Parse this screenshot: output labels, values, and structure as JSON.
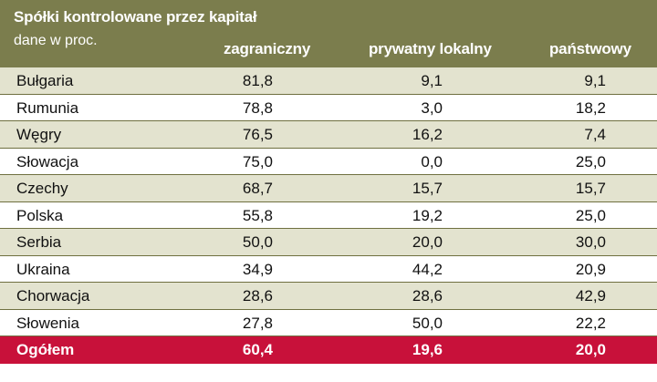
{
  "chart_data": {
    "type": "table",
    "title": "Spółki kontrolowane przez kapitał",
    "subtitle": "dane w proc.",
    "columns": [
      "zagraniczny",
      "prywatny lokalny",
      "państwowy"
    ],
    "rows": [
      {
        "country": "Bułgaria",
        "values": [
          "81,8",
          "9,1",
          "9,1"
        ]
      },
      {
        "country": "Rumunia",
        "values": [
          "78,8",
          "3,0",
          "18,2"
        ]
      },
      {
        "country": "Węgry",
        "values": [
          "76,5",
          "16,2",
          "7,4"
        ]
      },
      {
        "country": "Słowacja",
        "values": [
          "75,0",
          "0,0",
          "25,0"
        ]
      },
      {
        "country": "Czechy",
        "values": [
          "68,7",
          "15,7",
          "15,7"
        ]
      },
      {
        "country": "Polska",
        "values": [
          "55,8",
          "19,2",
          "25,0"
        ]
      },
      {
        "country": "Serbia",
        "values": [
          "50,0",
          "20,0",
          "30,0"
        ]
      },
      {
        "country": "Ukraina",
        "values": [
          "34,9",
          "44,2",
          "20,9"
        ]
      },
      {
        "country": "Chorwacja",
        "values": [
          "28,6",
          "28,6",
          "42,9"
        ]
      },
      {
        "country": "Słowenia",
        "values": [
          "27,8",
          "50,0",
          "22,2"
        ]
      }
    ],
    "total": {
      "country": "Ogółem",
      "values": [
        "60,4",
        "19,6",
        "20,0"
      ]
    }
  },
  "colors": {
    "header_bg": "#7b7d4d",
    "alt_row_bg": "#e3e3cf",
    "total_bg": "#c8113a"
  }
}
